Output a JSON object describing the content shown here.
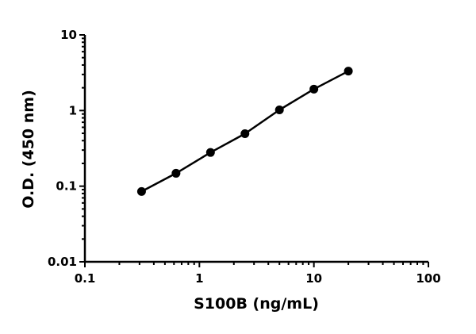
{
  "chart_data": {
    "type": "line",
    "title": "",
    "xlabel": "S100B (ng/mL)",
    "ylabel": "O.D. (450 nm)",
    "x_scale": "log",
    "y_scale": "log",
    "xlim": [
      0.1,
      100
    ],
    "ylim": [
      0.01,
      10
    ],
    "x_ticks": [
      "0.1",
      "1",
      "10",
      "100"
    ],
    "y_ticks": [
      "0.01",
      "0.1",
      "1",
      "10"
    ],
    "grid": false,
    "legend": "none",
    "series": [
      {
        "color": "#000000",
        "marker": "circle",
        "x": [
          0.3125,
          0.625,
          1.25,
          2.5,
          5,
          10,
          20
        ],
        "y": [
          0.085,
          0.148,
          0.279,
          0.494,
          1.02,
          1.92,
          3.32
        ]
      }
    ]
  }
}
